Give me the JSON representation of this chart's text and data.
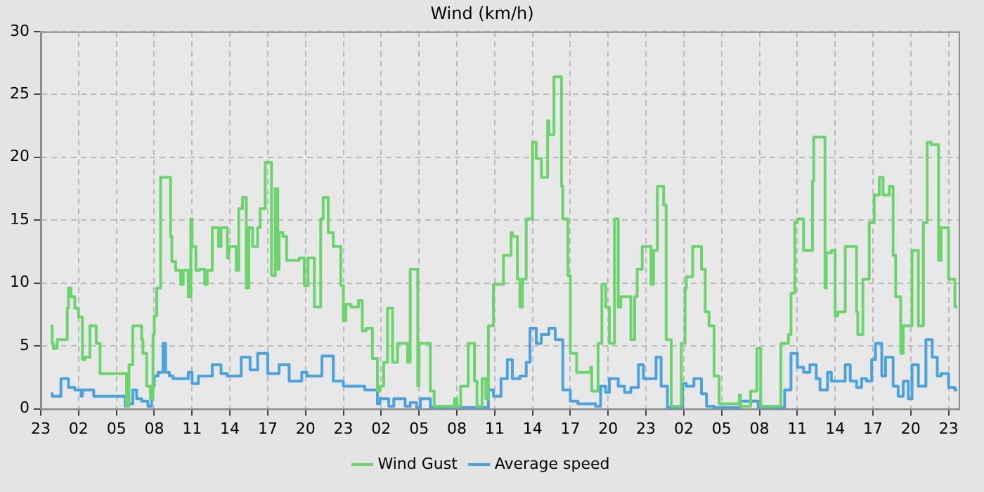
{
  "chart_data": {
    "type": "step",
    "title": "Wind (km/h)",
    "marker": "none",
    "line_style": "solid",
    "grid": true,
    "legend": "bottom",
    "xlim": [
      "--01-01T23:00",
      "--01-04T23:48"
    ],
    "xticks": [
      {
        "value": "--01-01T23:00",
        "label": "23"
      },
      {
        "value": "--01-02T02:00",
        "label": "02"
      },
      {
        "value": "--01-02T05:00",
        "label": "05"
      },
      {
        "value": "--01-02T08:00",
        "label": "08"
      },
      {
        "value": "--01-02T11:00",
        "label": "11"
      },
      {
        "value": "--01-02T14:00",
        "label": "14"
      },
      {
        "value": "--01-02T17:00",
        "label": "17"
      },
      {
        "value": "--01-02T20:00",
        "label": "20"
      },
      {
        "value": "--01-02T23:00",
        "label": "23"
      },
      {
        "value": "--01-03T02:00",
        "label": "02"
      },
      {
        "value": "--01-03T05:00",
        "label": "05"
      },
      {
        "value": "--01-03T08:00",
        "label": "08"
      },
      {
        "value": "--01-03T11:00",
        "label": "11"
      },
      {
        "value": "--01-03T14:00",
        "label": "14"
      },
      {
        "value": "--01-03T17:00",
        "label": "17"
      },
      {
        "value": "--01-03T20:00",
        "label": "20"
      },
      {
        "value": "--01-03T23:00",
        "label": "23"
      },
      {
        "value": "--01-04T02:00",
        "label": "02"
      },
      {
        "value": "--01-04T05:00",
        "label": "05"
      },
      {
        "value": "--01-04T08:00",
        "label": "08"
      },
      {
        "value": "--01-04T11:00",
        "label": "11"
      },
      {
        "value": "--01-04T14:00",
        "label": "14"
      },
      {
        "value": "--01-04T17:00",
        "label": "17"
      },
      {
        "value": "--01-04T20:00",
        "label": "20"
      },
      {
        "value": "--01-04T23:00",
        "label": "23"
      }
    ],
    "ylim": [
      0,
      30
    ],
    "yticks": [
      0,
      5,
      10,
      15,
      20,
      25,
      30
    ],
    "series": [
      {
        "name": "Wind Gust",
        "color": "#6cd46c",
        "x": [
          "--01-01T23:54",
          "--01-02T00:00",
          "--01-02T00:18",
          "--01-02T00:30",
          "--01-02T01:06",
          "--01-02T01:12",
          "--01-02T01:24",
          "--01-02T01:42",
          "--01-02T02:00",
          "--01-02T02:18",
          "--01-02T02:30",
          "--01-02T02:54",
          "--01-02T03:00",
          "--01-02T03:24",
          "--01-02T03:30",
          "--01-02T03:42",
          "--01-02T03:48",
          "--01-02T05:48",
          "--01-02T06:00",
          "--01-02T06:18",
          "--01-02T06:36",
          "--01-02T07:00",
          "--01-02T07:06",
          "--01-02T07:24",
          "--01-02T07:42",
          "--01-02T07:54",
          "--01-02T08:00",
          "--01-02T08:12",
          "--01-02T08:30",
          "--01-02T08:42",
          "--01-02T09:18",
          "--01-02T09:24",
          "--01-02T09:42",
          "--01-02T10:06",
          "--01-02T10:18",
          "--01-02T10:42",
          "--01-02T10:54",
          "--01-02T11:00",
          "--01-02T11:18",
          "--01-02T11:36",
          "--01-02T12:00",
          "--01-02T12:12",
          "--01-02T12:36",
          "--01-02T13:06",
          "--01-02T13:18",
          "--01-02T13:48",
          "--01-02T13:54",
          "--01-02T14:30",
          "--01-02T14:42",
          "--01-02T15:00",
          "--01-02T15:18",
          "--01-02T15:30",
          "--01-02T15:48",
          "--01-02T16:12",
          "--01-02T16:24",
          "--01-02T16:48",
          "--01-02T17:00",
          "--01-02T17:18",
          "--01-02T17:36",
          "--01-02T17:48",
          "--01-02T17:54",
          "--01-02T18:12",
          "--01-02T18:30",
          "--01-02T19:00",
          "--01-02T19:30",
          "--01-02T19:54",
          "--01-02T20:12",
          "--01-02T20:42",
          "--01-02T21:12",
          "--01-02T21:24",
          "--01-02T21:48",
          "--01-02T22:12",
          "--01-02T22:48",
          "--01-02T23:00",
          "--01-02T23:12",
          "--01-02T23:36",
          "--01-03T00:12",
          "--01-03T00:30",
          "--01-03T00:48",
          "--01-03T01:18",
          "--01-03T01:42",
          "--01-03T01:54",
          "--01-03T02:12",
          "--01-03T02:30",
          "--01-03T02:54",
          "--01-03T03:18",
          "--01-03T03:36",
          "--01-03T04:06",
          "--01-03T04:18",
          "--01-03T04:42",
          "--01-03T04:54",
          "--01-03T05:00",
          "--01-03T05:30",
          "--01-03T05:54",
          "--01-03T06:12",
          "--01-03T06:30",
          "--01-03T07:48",
          "--01-03T08:00",
          "--01-03T08:18",
          "--01-03T08:54",
          "--01-03T09:24",
          "--01-03T09:36",
          "--01-03T10:00",
          "--01-03T10:18",
          "--01-03T10:30",
          "--01-03T10:54",
          "--01-03T11:42",
          "--01-03T12:18",
          "--01-03T12:24",
          "--01-03T12:48",
          "--01-03T13:00",
          "--01-03T13:12",
          "--01-03T13:30",
          "--01-03T14:00",
          "--01-03T14:18",
          "--01-03T14:42",
          "--01-03T15:12",
          "--01-03T15:18",
          "--01-03T15:42",
          "--01-03T15:48",
          "--01-03T16:18",
          "--01-03T16:24",
          "--01-03T16:48",
          "--01-03T17:00",
          "--01-03T17:30",
          "--01-03T17:48",
          "--01-03T18:36",
          "--01-03T18:42",
          "--01-03T19:12",
          "--01-03T19:30",
          "--01-03T19:48",
          "--01-03T20:06",
          "--01-03T20:30",
          "--01-03T20:48",
          "--01-03T21:00",
          "--01-03T21:48",
          "--01-03T22:06",
          "--01-03T22:18",
          "--01-03T22:42",
          "--01-03T22:48",
          "--01-03T23:24",
          "--01-03T23:36",
          "--01-03T23:54",
          "--01-04T00:24",
          "--01-04T00:36",
          "--01-04T01:00",
          "--01-04T01:12",
          "--01-04T01:48",
          "--01-04T02:06",
          "--01-04T02:12",
          "--01-04T02:42",
          "--01-04T03:00",
          "--01-04T03:24",
          "--01-04T03:42",
          "--01-04T04:00",
          "--01-04T04:24",
          "--01-04T04:48",
          "--01-04T05:06",
          "--01-04T06:24",
          "--01-04T06:30",
          "--01-04T06:42",
          "--01-04T07:18",
          "--01-04T07:24",
          "--01-04T07:48",
          "--01-04T07:54",
          "--01-04T08:06",
          "--01-04T08:12",
          "--01-04T09:42",
          "--01-04T09:48",
          "--01-04T10:18",
          "--01-04T10:30",
          "--01-04T10:48",
          "--01-04T11:00",
          "--01-04T11:30",
          "--01-04T11:54",
          "--01-04T12:12",
          "--01-04T12:18",
          "--01-04T12:48",
          "--01-04T13:12",
          "--01-04T13:18",
          "--01-04T13:42",
          "--01-04T14:00",
          "--01-04T14:12",
          "--01-04T14:48",
          "--01-04T15:12",
          "--01-04T15:42",
          "--01-04T15:48",
          "--01-04T16:12",
          "--01-04T16:42",
          "--01-04T17:06",
          "--01-04T17:30",
          "--01-04T17:48",
          "--01-04T18:18",
          "--01-04T18:36",
          "--01-04T18:48",
          "--01-04T19:12",
          "--01-04T19:24",
          "--01-04T20:06",
          "--01-04T20:36",
          "--01-04T21:00",
          "--01-04T21:18",
          "--01-04T21:36",
          "--01-04T22:12",
          "--01-04T22:24",
          "--01-04T23:00",
          "--01-04T23:30",
          "--01-04T23:42"
        ],
        "values": [
          6.7,
          5.2,
          4.8,
          5.5,
          5.5,
          8.0,
          9.6,
          8.9,
          8.0,
          7.3,
          3.9,
          4.1,
          6.6,
          6.6,
          5.2,
          5.2,
          2.8,
          2.8,
          0.2,
          3.5,
          6.6,
          6.6,
          5.5,
          4.4,
          1.8,
          0.8,
          5.9,
          7.4,
          9.6,
          18.4,
          18.4,
          13.7,
          11.7,
          11.0,
          9.9,
          11.0,
          8.9,
          15.1,
          12.9,
          11.0,
          11.1,
          9.9,
          11.0,
          14.4,
          12.9,
          14.4,
          12.0,
          12.9,
          11.0,
          15.9,
          16.8,
          9.6,
          14.4,
          12.9,
          14.4,
          15.9,
          19.6,
          19.6,
          10.6,
          17.5,
          11.1,
          14.0,
          13.7,
          11.8,
          11.8,
          12.0,
          9.8,
          12.0,
          8.1,
          15.1,
          16.8,
          14.0,
          12.9,
          9.8,
          7.0,
          8.3,
          8.1,
          8.6,
          6.2,
          6.4,
          4.0,
          1.4,
          1.8,
          3.7,
          8.0,
          3.7,
          5.2,
          5.2,
          3.7,
          11.1,
          11.1,
          1.8,
          5.2,
          5.2,
          1.4,
          0.2,
          0.2,
          0.8,
          0.2,
          1.8,
          5.2,
          2.2,
          0.2,
          2.4,
          0.8,
          6.6,
          9.9,
          12.2,
          14.0,
          13.7,
          10.3,
          8.1,
          10.3,
          15.1,
          21.2,
          19.9,
          18.4,
          22.9,
          21.8,
          26.4,
          26.4,
          17.7,
          15.1,
          10.6,
          4.4,
          2.9,
          2.9,
          3.3,
          1.4,
          5.2,
          9.9,
          8.1,
          5.2,
          15.1,
          8.1,
          8.9,
          5.5,
          8.9,
          11.1,
          12.9,
          12.9,
          9.9,
          12.6,
          17.7,
          16.2,
          5.5,
          0.2,
          0.2,
          5.2,
          9.6,
          10.5,
          12.9,
          12.9,
          11.1,
          7.7,
          6.6,
          2.6,
          0.4,
          0.4,
          1.1,
          0.2,
          0.2,
          1.4,
          1.4,
          4.8,
          4.8,
          0.2,
          0.2,
          5.2,
          5.2,
          5.9,
          9.2,
          14.8,
          15.1,
          12.6,
          12.6,
          18.1,
          21.6,
          21.6,
          9.6,
          12.4,
          12.6,
          7.4,
          7.7,
          12.9,
          12.9,
          7.7,
          5.9,
          10.3,
          14.8,
          17.0,
          18.4,
          17.0,
          17.7,
          12.2,
          8.9,
          4.4,
          6.6,
          12.6,
          6.6,
          14.8,
          21.2,
          21.0,
          11.8,
          14.4,
          10.3,
          8.1
        ]
      },
      {
        "name": "Average speed",
        "color": "#4aa3df",
        "x": [
          "--01-01T23:54",
          "--01-02T00:36",
          "--01-02T01:12",
          "--01-02T01:42",
          "--01-02T02:12",
          "--01-02T02:18",
          "--01-02T03:12",
          "--01-02T03:30",
          "--01-02T05:42",
          "--01-02T05:48",
          "--01-02T06:18",
          "--01-02T06:36",
          "--01-02T07:00",
          "--01-02T07:30",
          "--01-02T07:48",
          "--01-02T08:00",
          "--01-02T08:18",
          "--01-02T08:42",
          "--01-02T08:54",
          "--01-02T09:12",
          "--01-02T09:30",
          "--01-02T10:42",
          "--01-02T11:00",
          "--01-02T11:30",
          "--01-02T12:36",
          "--01-02T13:18",
          "--01-02T13:48",
          "--01-02T14:54",
          "--01-02T15:36",
          "--01-02T16:12",
          "--01-02T17:00",
          "--01-02T17:54",
          "--01-02T18:42",
          "--01-02T19:42",
          "--01-02T20:06",
          "--01-02T21:18",
          "--01-02T22:12",
          "--01-02T23:00",
          "--01-02T23:36",
          "--01-03T00:42",
          "--01-03T01:06",
          "--01-03T01:42",
          "--01-03T01:54",
          "--01-03T02:36",
          "--01-03T03:00",
          "--01-03T03:54",
          "--01-03T04:18",
          "--01-03T04:48",
          "--01-03T05:06",
          "--01-03T05:54",
          "--01-03T06:30",
          "--01-03T10:30",
          "--01-03T10:54",
          "--01-03T11:30",
          "--01-03T12:00",
          "--01-03T12:24",
          "--01-03T13:00",
          "--01-03T13:30",
          "--01-03T13:48",
          "--01-03T14:18",
          "--01-03T14:42",
          "--01-03T15:18",
          "--01-03T15:48",
          "--01-03T16:24",
          "--01-03T17:00",
          "--01-03T17:36",
          "--01-03T19:00",
          "--01-03T19:24",
          "--01-03T19:48",
          "--01-03T20:06",
          "--01-03T20:48",
          "--01-03T21:18",
          "--01-03T21:48",
          "--01-03T22:24",
          "--01-03T22:48",
          "--01-03T23:18",
          "--01-03T23:48",
          "--01-04T00:12",
          "--01-04T00:42",
          "--01-04T01:06",
          "--01-04T01:54",
          "--01-04T02:12",
          "--01-04T02:48",
          "--01-04T03:24",
          "--01-04T03:48",
          "--01-04T04:24",
          "--01-04T06:30",
          "--01-04T07:54",
          "--01-04T08:12",
          "--01-04T10:00",
          "--01-04T10:30",
          "--01-04T11:00",
          "--01-04T11:30",
          "--01-04T12:00",
          "--01-04T12:30",
          "--01-04T12:48",
          "--01-04T13:24",
          "--01-04T13:42",
          "--01-04T14:12",
          "--01-04T14:48",
          "--01-04T15:12",
          "--01-04T15:42",
          "--01-04T16:06",
          "--01-04T16:30",
          "--01-04T16:54",
          "--01-04T17:12",
          "--01-04T17:42",
          "--01-04T18:00",
          "--01-04T18:36",
          "--01-04T19:00",
          "--01-04T19:24",
          "--01-04T19:48",
          "--01-04T20:06",
          "--01-04T20:36",
          "--01-04T21:12",
          "--01-04T21:42",
          "--01-04T22:06",
          "--01-04T22:24",
          "--01-04T23:00",
          "--01-04T23:30",
          "--01-04T23:42"
        ],
        "values": [
          1.3,
          1.0,
          2.4,
          1.7,
          1.5,
          1.0,
          1.5,
          1.0,
          1.0,
          0.2,
          0.4,
          1.5,
          0.8,
          0.6,
          0.2,
          1.8,
          2.6,
          2.9,
          5.2,
          2.9,
          2.6,
          2.4,
          2.9,
          2.0,
          2.6,
          3.5,
          2.8,
          2.6,
          4.1,
          3.1,
          4.4,
          2.8,
          3.5,
          2.2,
          2.9,
          2.6,
          4.2,
          2.2,
          1.8,
          1.8,
          1.5,
          1.5,
          0.4,
          0.8,
          0.2,
          0.8,
          0.2,
          0.5,
          0.1,
          0.8,
          0.1,
          0.1,
          1.5,
          1.0,
          2.4,
          3.9,
          2.4,
          2.6,
          3.7,
          6.4,
          5.2,
          5.9,
          6.4,
          5.5,
          1.5,
          0.6,
          0.4,
          0.2,
          1.8,
          1.3,
          2.4,
          1.8,
          1.3,
          1.7,
          3.5,
          2.4,
          2.4,
          4.1,
          1.8,
          0.1,
          0.1,
          2.0,
          1.8,
          2.4,
          1.2,
          0.2,
          0.1,
          0.6,
          0.1,
          0.1,
          1.5,
          4.4,
          3.3,
          2.9,
          3.5,
          2.4,
          1.5,
          2.9,
          2.2,
          2.2,
          3.5,
          2.2,
          1.7,
          2.4,
          2.2,
          3.9,
          5.2,
          2.6,
          4.1,
          1.8,
          1.0,
          2.2,
          0.8,
          3.5,
          1.8,
          5.5,
          4.1,
          2.6,
          2.8,
          1.7,
          1.5
        ]
      }
    ]
  }
}
